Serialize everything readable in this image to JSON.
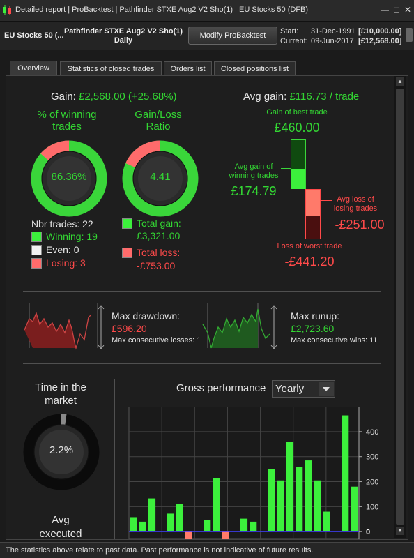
{
  "window": {
    "title": "Detailed report | ProBacktest | Pathfinder STXE Aug2 V2 Sho(1) | EU Stocks 50 (DFB)",
    "controls": [
      "minimize-icon",
      "maximize-icon",
      "close-icon"
    ]
  },
  "header": {
    "instrument": "EU Stocks 50 (...",
    "strategy_name": "Pathfinder STXE Aug2 V2 Sho(1)",
    "timeframe": "Daily",
    "modify_button": "Modify ProBacktest",
    "start_label": "Start:",
    "start_date": "31-Dec-1991",
    "start_capital": "[£10,000.00]",
    "current_label": "Current:",
    "current_date": "09-Jun-2017",
    "current_capital": "[£12,568.00]"
  },
  "tabs": [
    {
      "label": "Overview",
      "active": true
    },
    {
      "label": "Statistics of closed trades",
      "active": false
    },
    {
      "label": "Orders list",
      "active": false
    },
    {
      "label": "Closed positions list",
      "active": false
    }
  ],
  "overview": {
    "gain_label": "Gain:",
    "gain_value": "£2,568.00 (+25.68%)",
    "winning_title": "% of winning trades",
    "winning_pct": "86.36%",
    "winning_fraction": 0.8636,
    "ratio_title": "Gain/Loss Ratio",
    "ratio_value": "4.41",
    "ratio_fraction": 0.815,
    "nbr_trades": "Nbr trades: 22",
    "winning": "Winning: 19",
    "even": "Even: 0",
    "losing": "Losing: 3",
    "total_gain_label": "Total gain:",
    "total_gain_value": "£3,321.00",
    "total_loss_label": "Total loss:",
    "total_loss_value": "-£753.00",
    "avg_gain_label": "Avg gain:",
    "avg_gain_value": "£116.73 / trade",
    "best_trade_label": "Gain of best trade",
    "best_trade_value": "£460.00",
    "avg_win_label": "Avg gain of winning trades",
    "avg_win_value": "£174.79",
    "avg_loss_label": "Avg loss of losing trades",
    "avg_loss_value": "-£251.00",
    "worst_trade_label": "Loss of worst trade",
    "worst_trade_value": "-£441.20",
    "max_drawdown_label": "Max drawdown:",
    "max_drawdown_value": "£596.20",
    "max_consec_losses": "Max consecutive losses: 1",
    "max_runup_label": "Max runup:",
    "max_runup_value": "£2,723.60",
    "max_consec_wins": "Max consecutive wins: 11",
    "time_in_market_label": "Time in the market",
    "time_in_market_value": "2.2%",
    "time_in_market_fraction": 0.022,
    "avg_executed_label": "Avg executed",
    "gross_perf_label": "Gross performance",
    "period_select": "Yearly"
  },
  "colors": {
    "green": "#33d633",
    "red": "#ff4a4a",
    "bar_green": "#3cf03c",
    "bar_red": "#ff7a6a"
  },
  "status": "The statistics above relate to past data. Past performance is not indicative of future results.",
  "chart_data": {
    "type": "bar",
    "title": "Gross performance",
    "ylim": [
      -30,
      500
    ],
    "yticks": [
      0,
      100,
      200,
      300,
      400
    ],
    "grid": true,
    "values": [
      58,
      40,
      133,
      0,
      72,
      110,
      -60,
      0,
      48,
      215,
      -70,
      0,
      52,
      40,
      0,
      250,
      205,
      360,
      260,
      285,
      205,
      80,
      0,
      465,
      180
    ]
  }
}
